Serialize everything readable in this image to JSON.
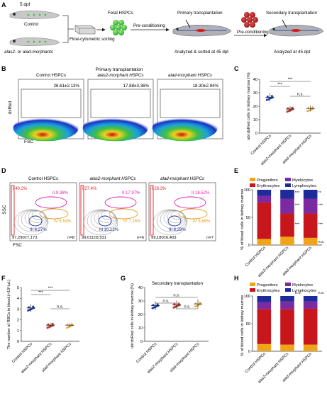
{
  "panels": {
    "A": {
      "letter": "A",
      "age": "5 dpf",
      "control": "Control",
      "morphants": "alas2- or alad-morphants",
      "sorting": "Flow-cytometric sorting",
      "fetal": "Fetal HSPCs",
      "precond1": "Pre-conditioning",
      "primary": "Primary transplantation",
      "precond2": "Pre-conditioning",
      "secondary": "Secondary transplantation",
      "analyzed_sorted": "Analyzed & sorted at 45 dpt",
      "analyzed": "Analyzed at 45 dpt"
    },
    "B": {
      "letter": "B",
      "title": "Primary transplantation",
      "ylabel": "dsRed",
      "xlabel": "FSC",
      "plots": [
        {
          "label": "Control HSPCs",
          "value": "26.61±2.13%"
        },
        {
          "label": "alas2-morphant HSPCs",
          "value": "17.88±3.36%"
        },
        {
          "label": "alad-morphant HSPCs",
          "value": "18.30±2.94%"
        }
      ]
    },
    "C": {
      "letter": "C",
      "ylabel": "ubi:dsRed cells in kidney marrow (%)",
      "ns": "n.s.",
      "sig": "***",
      "categories": [
        "Control HSPCs",
        "alas2-morphant HSPCs",
        "alad-morphant HSPCs"
      ],
      "yticks": [
        "0",
        "10",
        "20",
        "30",
        "40"
      ]
    },
    "D": {
      "letter": "D",
      "ylabel": "SSC",
      "xlabel": "FSC",
      "plots": [
        {
          "label": "Control HSPCs",
          "I": "I 40.2%",
          "II": "II 9.38%",
          "III": "III 6.27%",
          "IV": "IV 5.63%",
          "count": "97,290±7,173",
          "n": "n=8"
        },
        {
          "label": "alas2-morphant HSPCs",
          "I": "I 27.4%",
          "II": "II 17.97%",
          "III": "III 10.12%",
          "IV": "IV 7.18%",
          "count": "99,011±8,531",
          "n": "n=6"
        },
        {
          "label": "alad-morphant HSPCs",
          "I": "I 28.3%",
          "II": "II 18.52%",
          "III": "III 8.29%",
          "IV": "IV 6.88%",
          "count": "99,180±6,403",
          "n": "n=7"
        }
      ]
    },
    "E": {
      "letter": "E",
      "ylabel": "% of blood cells in kidney marrow",
      "legend": [
        "Progenitors",
        "Myelocytes",
        "Erythrocytes",
        "Lymphocytes"
      ],
      "categories": [
        "Control HSPCs",
        "alas2-morphant HSPCs",
        "alad-morphant HSPCs"
      ],
      "yticks": [
        "0",
        "50",
        "100"
      ],
      "sig": "***",
      "sig2": "**",
      "ns": "n.s."
    },
    "F": {
      "letter": "F",
      "ylabel": "The number of RBCs in blood (×10⁶/μL)",
      "categories": [
        "Control HSPCs",
        "alas2-morphant HSPCs",
        "alad-morphant HSPCs"
      ],
      "yticks": [
        "0",
        "1",
        "2",
        "3",
        "4",
        "5"
      ],
      "sig": "***",
      "ns": "n.s."
    },
    "G": {
      "letter": "G",
      "title": "Secondary transplantation",
      "ylabel": "ubi:dsRed cells in kidney marrow (%)",
      "categories": [
        "Control HSPCs",
        "alas2-morphant HSPCs",
        "alad-morphant HSPCs"
      ],
      "yticks": [
        "0",
        "10",
        "20",
        "30",
        "40"
      ],
      "ns": "n.s."
    },
    "H": {
      "letter": "H",
      "ylabel": "% of blood cells in kidney marrow",
      "legend": [
        "Progenitors",
        "Myelocytes",
        "Erythrocytes",
        "Lymphocytes"
      ],
      "categories": [
        "Control HSPCs",
        "alas2-morphant HSPCs",
        "alad-morphant HSPCs"
      ],
      "yticks": [
        "0",
        "50",
        "100"
      ],
      "ns": "n.s."
    }
  },
  "colors": {
    "control": "#1f3fb5",
    "alas2": "#c0392b",
    "alad": "#e0a020",
    "progenitors": "#f0a418",
    "myelocytes": "#7b2aa0",
    "erythrocytes": "#c8171c",
    "lymphocytes": "#1d2c9a",
    "pink": "#e020b0",
    "red": "#e02020"
  },
  "chart_data": [
    {
      "type": "scatter",
      "panel": "C",
      "categories": [
        "Control HSPCs",
        "alas2-morphant HSPCs",
        "alad-morphant HSPCs"
      ],
      "series": [
        {
          "values": [
            26.6,
            17.9,
            18.3
          ]
        }
      ],
      "ylim": [
        0,
        40
      ]
    },
    {
      "type": "bar",
      "panel": "E",
      "categories": [
        "Control HSPCs",
        "alas2-morphant HSPCs",
        "alad-morphant HSPCs"
      ],
      "series": [
        {
          "name": "Progenitors",
          "values": [
            11,
            15,
            13
          ]
        },
        {
          "name": "Erythrocytes",
          "values": [
            66,
            42,
            44
          ]
        },
        {
          "name": "Myelocytes",
          "values": [
            12,
            27,
            27
          ]
        },
        {
          "name": "Lymphocytes",
          "values": [
            11,
            16,
            16
          ]
        }
      ],
      "ylim": [
        0,
        100
      ]
    },
    {
      "type": "scatter",
      "panel": "F",
      "categories": [
        "Control HSPCs",
        "alas2-morphant HSPCs",
        "alad-morphant HSPCs"
      ],
      "series": [
        {
          "values": [
            3.1,
            1.5,
            1.5
          ]
        }
      ],
      "ylim": [
        0,
        5
      ]
    },
    {
      "type": "scatter",
      "panel": "G",
      "categories": [
        "Control HSPCs",
        "alas2-morphant HSPCs",
        "alad-morphant HSPCs"
      ],
      "series": [
        {
          "values": [
            26.5,
            27.0,
            27.8
          ]
        }
      ],
      "ylim": [
        0,
        40
      ]
    },
    {
      "type": "bar",
      "panel": "H",
      "categories": [
        "Control HSPCs",
        "alas2-morphant HSPCs",
        "alad-morphant HSPCs"
      ],
      "series": [
        {
          "name": "Progenitors",
          "values": [
            13,
            12,
            12
          ]
        },
        {
          "name": "Erythrocytes",
          "values": [
            63,
            64,
            65
          ]
        },
        {
          "name": "Myelocytes",
          "values": [
            13,
            14,
            13
          ]
        },
        {
          "name": "Lymphocytes",
          "values": [
            11,
            10,
            10
          ]
        }
      ],
      "ylim": [
        0,
        100
      ]
    }
  ]
}
